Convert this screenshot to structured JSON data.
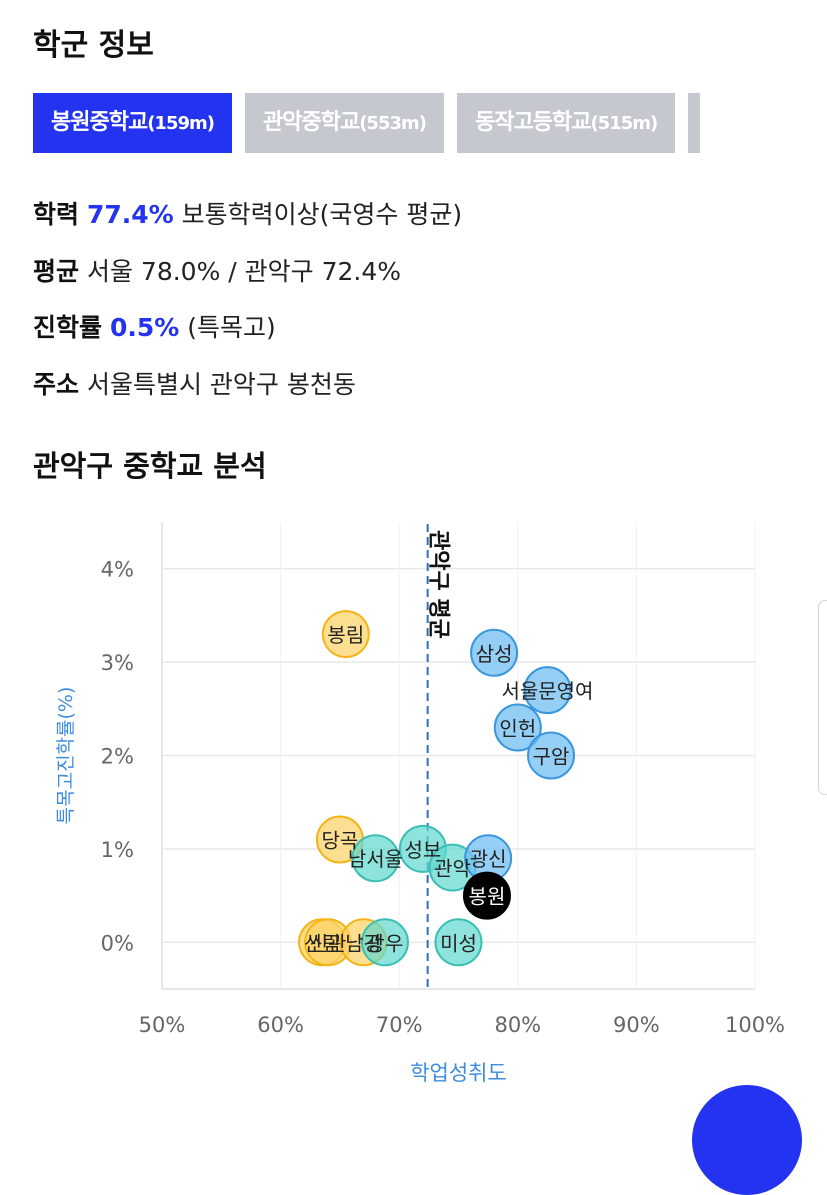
{
  "header": {
    "title": "학군 정보"
  },
  "tabs": [
    {
      "name": "봉원중학교",
      "dist": "(159m)",
      "active": true
    },
    {
      "name": "관악중학교",
      "dist": "(553m)",
      "active": false
    },
    {
      "name": "동작고등학교",
      "dist": "(515m)",
      "active": false
    }
  ],
  "info": {
    "academic": {
      "key": "학력",
      "value": "77.4%",
      "desc": "보통학력이상(국영수 평균)"
    },
    "average": {
      "key": "평균",
      "text": "서울 78.0% / 관악구 72.4%"
    },
    "advance": {
      "key": "진학률",
      "value": "0.5%",
      "desc": "(특목고)"
    },
    "address": {
      "key": "주소",
      "text": "서울특별시 관악구 봉천동"
    }
  },
  "analysis": {
    "title": "관악구 중학교 분석"
  },
  "chart_data": {
    "type": "scatter",
    "xlabel": "학업성취도",
    "ylabel": "특목고진학률(%)",
    "xlim": [
      50,
      100
    ],
    "ylim": [
      -0.5,
      4.5
    ],
    "xticks": [
      "50%",
      "60%",
      "70%",
      "80%",
      "90%",
      "100%"
    ],
    "xtick_values": [
      50,
      60,
      70,
      80,
      90,
      100
    ],
    "yticks": [
      "0%",
      "1%",
      "2%",
      "3%",
      "4%"
    ],
    "ytick_values": [
      0,
      1,
      2,
      3,
      4
    ],
    "grid": true,
    "reference_line": {
      "label": "관악구 평균",
      "x": 72.4
    },
    "colors": {
      "yellow": "#fcd266",
      "teal": "#63d8cf",
      "blue": "#6cbcf1",
      "black": "#000000"
    },
    "points": [
      {
        "name": "봉림",
        "x": 65.5,
        "y": 3.3,
        "color": "yellow"
      },
      {
        "name": "삼성",
        "x": 78.0,
        "y": 3.1,
        "color": "blue"
      },
      {
        "name": "서울문영여",
        "x": 82.5,
        "y": 2.7,
        "color": "blue"
      },
      {
        "name": "인헌",
        "x": 80.0,
        "y": 2.3,
        "color": "blue"
      },
      {
        "name": "구암",
        "x": 82.8,
        "y": 2.0,
        "color": "blue"
      },
      {
        "name": "당곡",
        "x": 65.0,
        "y": 1.1,
        "color": "yellow"
      },
      {
        "name": "남서울",
        "x": 68.0,
        "y": 0.9,
        "color": "teal"
      },
      {
        "name": "성보",
        "x": 72.0,
        "y": 1.0,
        "color": "teal"
      },
      {
        "name": "관악",
        "x": 74.5,
        "y": 0.8,
        "color": "teal"
      },
      {
        "name": "광신",
        "x": 77.5,
        "y": 0.9,
        "color": "blue"
      },
      {
        "name": "봉원",
        "x": 77.4,
        "y": 0.5,
        "color": "black"
      },
      {
        "name": "신림",
        "x": 63.5,
        "y": 0.0,
        "color": "yellow"
      },
      {
        "name": "신관",
        "x": 64.0,
        "y": 0.0,
        "color": "yellow"
      },
      {
        "name": "남강",
        "x": 67.0,
        "y": 0.0,
        "color": "yellow"
      },
      {
        "name": "광우",
        "x": 68.8,
        "y": 0.0,
        "color": "teal"
      },
      {
        "name": "미성",
        "x": 75.0,
        "y": 0.0,
        "color": "teal"
      }
    ]
  }
}
